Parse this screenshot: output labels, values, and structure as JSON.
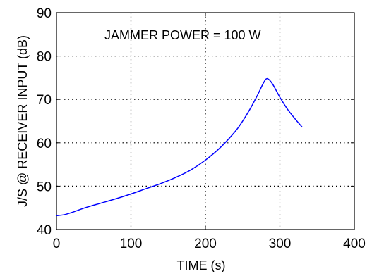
{
  "chart_data": {
    "type": "line",
    "title": "",
    "annotation": "JAMMER POWER = 100 W",
    "xlabel": "TIME (s)",
    "ylabel": "J/S @ RECEIVER INPUT (dB)",
    "xlim": [
      0,
      400
    ],
    "ylim": [
      40,
      90
    ],
    "xticks": [
      "0",
      "100",
      "200",
      "300",
      "400"
    ],
    "yticks": [
      "40",
      "50",
      "60",
      "70",
      "80",
      "90"
    ],
    "grid": true,
    "series": [
      {
        "color": "#0000ff",
        "x": [
          0,
          10,
          20,
          40,
          60,
          80,
          100,
          120,
          140,
          160,
          180,
          200,
          220,
          240,
          250,
          260,
          270,
          278,
          283,
          290,
          300,
          310,
          320,
          330
        ],
        "y": [
          43.2,
          43.4,
          43.9,
          45.1,
          46.1,
          47.1,
          48.2,
          49.4,
          50.6,
          52.0,
          53.7,
          56.0,
          58.9,
          62.6,
          65.0,
          67.8,
          71.0,
          73.8,
          74.8,
          73.6,
          70.5,
          67.8,
          65.6,
          63.6
        ]
      }
    ]
  }
}
